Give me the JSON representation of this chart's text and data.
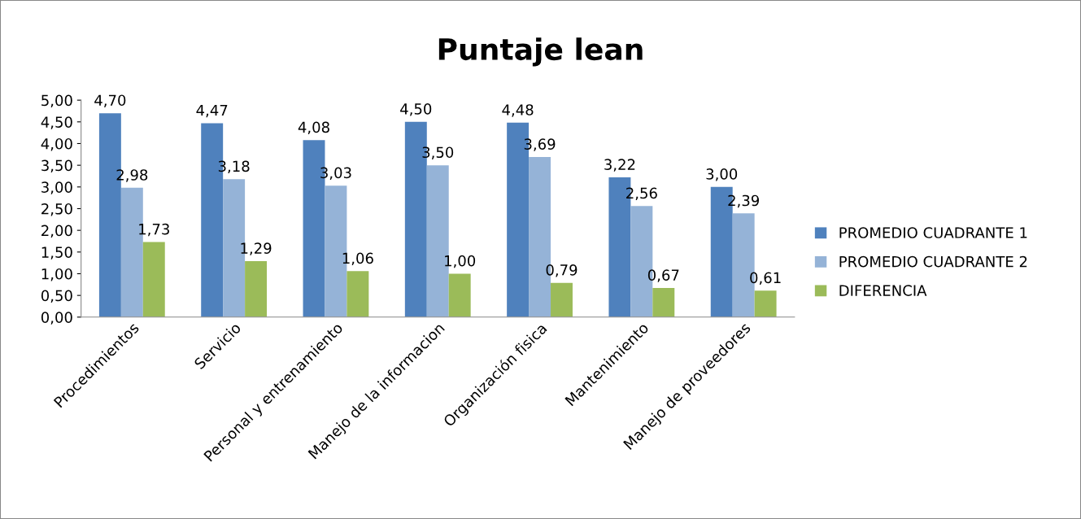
{
  "chart_data": {
    "type": "bar",
    "title": "Puntaje lean",
    "categories": [
      "Procedimientos",
      "Servicio",
      "Personal y entrenamiento",
      "Manejo de la informacion",
      "Organización fisica",
      "Mantenimiento",
      "Manejo de proveedores"
    ],
    "series": [
      {
        "name": "PROMEDIO CUADRANTE 1",
        "color": "#4f81bd",
        "values": [
          4.7,
          4.47,
          4.08,
          4.5,
          4.48,
          3.22,
          3.0
        ],
        "value_labels": [
          "4,70",
          "4,47",
          "4,08",
          "4,50",
          "4,48",
          "3,22",
          "3,00"
        ]
      },
      {
        "name": "PROMEDIO CUADRANTE 2",
        "color": "#95b3d7",
        "values": [
          2.98,
          3.18,
          3.03,
          3.5,
          3.69,
          2.56,
          2.39
        ],
        "value_labels": [
          "2,98",
          "3,18",
          "3,03",
          "3,50",
          "3,69",
          "2,56",
          "2,39"
        ]
      },
      {
        "name": "DIFERENCIA",
        "color": "#9bbb59",
        "values": [
          1.73,
          1.29,
          1.06,
          1.0,
          0.79,
          0.67,
          0.61
        ],
        "value_labels": [
          "1,73",
          "1,29",
          "1,06",
          "1,00",
          "0,79",
          "0,67",
          "0,61"
        ]
      }
    ],
    "ylim": [
      0,
      5
    ],
    "yticks": [
      {
        "value": 0,
        "label": "0,00"
      },
      {
        "value": 0.5,
        "label": "0,50"
      },
      {
        "value": 1,
        "label": "1,00"
      },
      {
        "value": 1.5,
        "label": "1,50"
      },
      {
        "value": 2,
        "label": "2,00"
      },
      {
        "value": 2.5,
        "label": "2,50"
      },
      {
        "value": 3,
        "label": "3,00"
      },
      {
        "value": 3.5,
        "label": "3,50"
      },
      {
        "value": 4,
        "label": "4,00"
      },
      {
        "value": 4.5,
        "label": "4,50"
      },
      {
        "value": 5,
        "label": "5,00"
      }
    ],
    "grid": false,
    "legend": "right"
  }
}
